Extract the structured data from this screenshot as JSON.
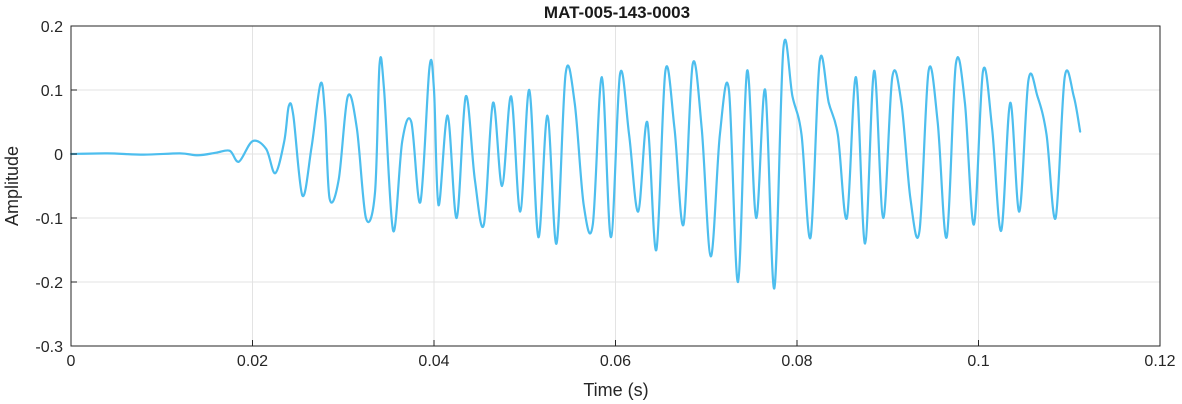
{
  "chart_data": {
    "type": "line",
    "title": "MAT-005-143-0003",
    "xlabel": "Time (s)",
    "ylabel": "Amplitude",
    "xlim": [
      0,
      0.12
    ],
    "ylim": [
      -0.3,
      0.2
    ],
    "xticks": [
      0,
      0.02,
      0.04,
      0.06,
      0.08,
      0.1,
      0.12
    ],
    "xtick_labels": [
      "0",
      "0.02",
      "0.04",
      "0.06",
      "0.08",
      "0.1",
      "0.12"
    ],
    "yticks": [
      -0.3,
      -0.2,
      -0.1,
      0,
      0.1,
      0.2
    ],
    "ytick_labels": [
      "-0.3",
      "-0.2",
      "-0.1",
      "0",
      "0.1",
      "0.2"
    ],
    "grid": true,
    "series": [
      {
        "color": "#4DBEEE",
        "x": [
          0,
          0.004,
          0.008,
          0.012,
          0.014,
          0.016,
          0.0175,
          0.0185,
          0.02,
          0.0215,
          0.0225,
          0.0235,
          0.024,
          0.0245,
          0.0255,
          0.0265,
          0.0275,
          0.028,
          0.0285,
          0.0295,
          0.0305,
          0.0315,
          0.0325,
          0.0335,
          0.034,
          0.0345,
          0.0355,
          0.0365,
          0.0375,
          0.0385,
          0.0395,
          0.04,
          0.0405,
          0.0415,
          0.0425,
          0.0435,
          0.0445,
          0.0455,
          0.0465,
          0.0475,
          0.0485,
          0.0495,
          0.0505,
          0.0515,
          0.0525,
          0.0535,
          0.0545,
          0.0555,
          0.0565,
          0.0575,
          0.0585,
          0.0595,
          0.0605,
          0.0615,
          0.0625,
          0.0635,
          0.0645,
          0.0655,
          0.0665,
          0.0675,
          0.0685,
          0.0695,
          0.0705,
          0.0715,
          0.0725,
          0.0735,
          0.0745,
          0.0755,
          0.0765,
          0.0775,
          0.0785,
          0.0795,
          0.0805,
          0.0815,
          0.0825,
          0.0835,
          0.0845,
          0.0855,
          0.0865,
          0.0875,
          0.0885,
          0.0895,
          0.0905,
          0.0915,
          0.0925,
          0.0935,
          0.0945,
          0.0955,
          0.0965,
          0.0975,
          0.0985,
          0.0995,
          0.1005,
          0.1015,
          0.1025,
          0.1035,
          0.1045,
          0.1055,
          0.1065,
          0.1075,
          0.1085,
          0.1095,
          0.1105,
          0.1112
        ],
        "y": [
          0,
          0.001,
          -0.001,
          0.001,
          -0.002,
          0.002,
          0.005,
          -0.012,
          0.02,
          0.008,
          -0.03,
          0.02,
          0.075,
          0.06,
          -0.065,
          0.01,
          0.11,
          0.06,
          -0.07,
          -0.04,
          0.09,
          0.04,
          -0.1,
          -0.06,
          0.14,
          0.1,
          -0.12,
          0.02,
          0.05,
          -0.075,
          0.135,
          0.1,
          -0.08,
          0.06,
          -0.1,
          0.09,
          -0.04,
          -0.11,
          0.08,
          -0.05,
          0.09,
          -0.09,
          0.1,
          -0.13,
          0.06,
          -0.14,
          0.125,
          0.08,
          -0.08,
          -0.11,
          0.12,
          -0.13,
          0.125,
          0.03,
          -0.09,
          0.05,
          -0.15,
          0.13,
          0.04,
          -0.11,
          0.14,
          0.04,
          -0.16,
          0.03,
          0.1,
          -0.2,
          0.13,
          -0.1,
          0.1,
          -0.21,
          0.165,
          0.09,
          0.03,
          -0.13,
          0.145,
          0.08,
          0.03,
          -0.1,
          0.12,
          -0.14,
          0.13,
          -0.1,
          0.12,
          0.08,
          -0.07,
          -0.12,
          0.13,
          0.05,
          -0.13,
          0.14,
          0.08,
          -0.11,
          0.13,
          0.04,
          -0.12,
          0.08,
          -0.09,
          0.115,
          0.09,
          0.03,
          -0.1,
          0.12,
          0.09,
          0.035
        ]
      }
    ]
  }
}
